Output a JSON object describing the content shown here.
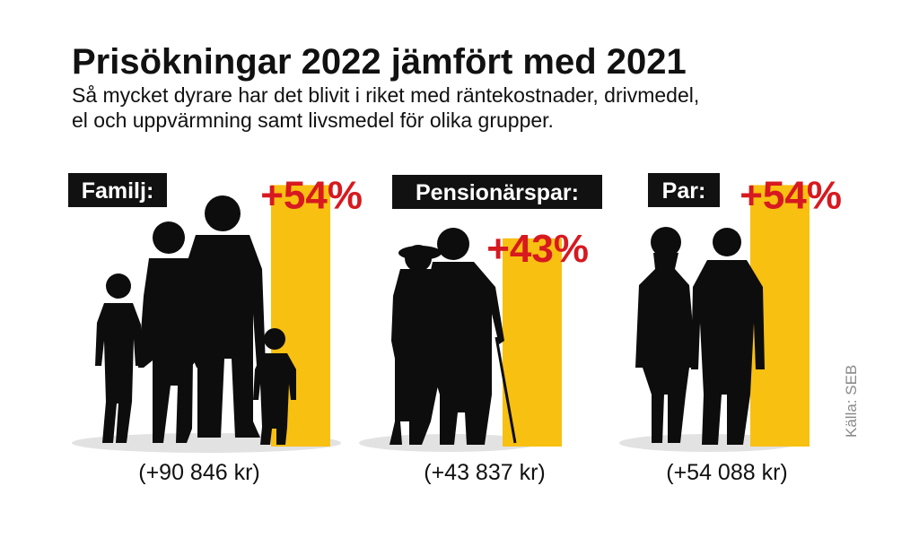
{
  "title": "Prisökningar 2022 jämfört med 2021",
  "subtitle_lines": [
    "Så mycket dyrare har det blivit i riket med räntekostnader, drivmedel,",
    "el och uppvärmning samt livsmedel för olika grupper."
  ],
  "source": "Källa: SEB",
  "colors": {
    "bar": "#f8c011",
    "percent_text": "#d71920",
    "label_bg": "#111111",
    "silhouette": "#0d0d0d",
    "source_text": "#8a8a8a"
  },
  "chart_data": {
    "type": "bar",
    "title": "Prisökningar 2022 jämfört med 2021",
    "categories": [
      "Familj:",
      "Pensionärspar:",
      "Par:"
    ],
    "values": [
      54,
      43,
      54
    ],
    "unit": "%",
    "value_labels": [
      "+54%",
      "+43%",
      "+54%"
    ],
    "amount_labels": [
      "(+90 846 kr)",
      "(+43 837 kr)",
      "(+54 088 kr)"
    ],
    "xlabel": "",
    "ylabel": "",
    "legend": "none",
    "grid": false
  }
}
